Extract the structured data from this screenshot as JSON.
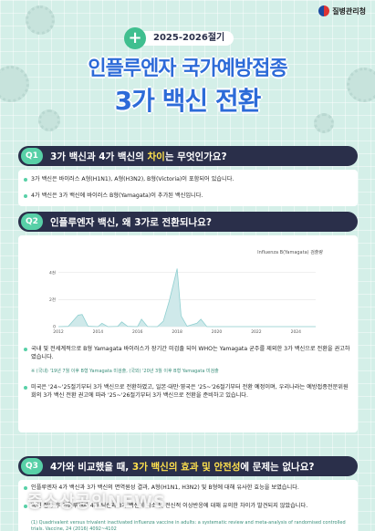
{
  "header": {
    "agency": "질병관리청",
    "year_badge": "2025-2026절기",
    "title_line1": "인플루엔자 국가예방접종",
    "title_line2": "3가 백신 전환"
  },
  "q1": {
    "number": "Q1",
    "question_pre": "3가 백신과 4가 백신의 ",
    "question_highlight": "차이",
    "question_post": "는 무엇인가요?",
    "bullets": [
      "3가 백신은 바이러스 A형(H1N1), A형(H3N2), B형(Victoria)이 포함되어 있습니다.",
      "4가 백신은 3가 백신에 바이러스 B형(Yamagata)이 추가된 백신입니다."
    ]
  },
  "q2": {
    "number": "Q2",
    "question": "인플루엔자 백신, 왜 3가로 전환되나요?",
    "bullets": [
      "국내 및 전세계적으로 B형 Yamagata 바이러스가 장기간 미검출 되어 WHO는 Yamagata 균주를 제외한 3가 백신으로 전환을 권고하였습니다.",
      "미국은 '24~'25절기부터 3가 백신으로 전환하였고, 일본·대만·영국은 '25~'26절기부터 전환 예정이며, 우리나라는 예방접종전문위원회의 3가 백신 전환 권고에 따라 '25~'26절기부터 3가 백신으로 전환을 준비하고 있습니다."
    ],
    "note": "※ (국내) '19년 7월 이후 B형 Yamagata 미검출, (국외) '20년 3월 이후 B형 Yamagata 미검출"
  },
  "q3": {
    "number": "Q3",
    "question_pre": "4가와 비교했을 때, ",
    "question_highlight": "3가 백신의 효과 및 안전성",
    "question_post": "에 문제는 없나요?",
    "bullets": [
      "인플루엔자 4가 백신과 3가 백신의 면역원성 결과, A형(H1N1, H3N2) 및 B형에 대해 유사한 효능을 보였습니다.",
      "백신 접종 후 인플루엔자 4가 백신과 3가 백신의 국소 및 전신적 이상반응에 대해 유의한 차이가 발견되지 않았습니다."
    ],
    "reference": "(1) Quadrivalent versus trivalent inactivated influenza vaccine in adults: a systematic review and meta-analysis of randomised controlled trials. Vaccine, 24 (2016) 4092~4102"
  },
  "watermark": "중소상공인NEWS",
  "colors": {
    "background": "#d4efe8",
    "title_blue": "#2d6bd8",
    "navy": "#2a2f4a",
    "mint": "#58d0a7",
    "highlight_yellow": "#ffe14d"
  },
  "chart_data": {
    "type": "line",
    "legend": "Influenza B(Yamagata) 검출량",
    "x_ticks": [
      "2012",
      "2014",
      "2016",
      "2018",
      "2020",
      "2022",
      "2024"
    ],
    "y_ticks": [
      "0",
      "2천",
      "4천"
    ],
    "ylim": [
      0,
      5000
    ],
    "x": [
      2012.0,
      2012.5,
      2013.0,
      2013.2,
      2013.5,
      2014.0,
      2014.2,
      2014.5,
      2015.0,
      2015.2,
      2015.5,
      2016.0,
      2016.2,
      2016.5,
      2017.0,
      2017.3,
      2017.6,
      2018.0,
      2018.2,
      2018.5,
      2019.0,
      2019.2,
      2019.5,
      2020.0,
      2021.0,
      2022.0,
      2023.0,
      2024.0,
      2025.0
    ],
    "y": [
      0,
      20,
      850,
      900,
      30,
      0,
      250,
      0,
      20,
      350,
      20,
      0,
      550,
      10,
      0,
      400,
      1900,
      4300,
      800,
      30,
      250,
      550,
      0,
      0,
      0,
      0,
      0,
      0,
      0
    ]
  }
}
